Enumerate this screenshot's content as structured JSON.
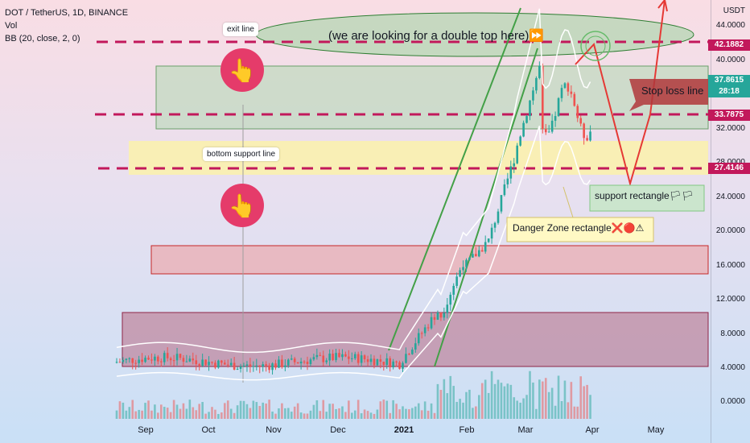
{
  "legend": {
    "symbol_line": "DOT / TetherUS, 1D, BINANCE",
    "vol": "Vol",
    "bb": "BB (20, close, 2, 0)"
  },
  "currency": "USDT",
  "y_axis_labels": [
    "44.0000",
    "40.0000",
    "32.0000",
    "28.0000",
    "24.0000",
    "20.0000",
    "16.0000",
    "12.0000",
    "8.0000",
    "4.0000",
    "0.0000"
  ],
  "x_axis_labels": [
    "Sep",
    "Oct",
    "Nov",
    "Dec",
    "2021",
    "Feb",
    "Mar",
    "Apr",
    "May"
  ],
  "price_tags": {
    "top": "42.1882",
    "current": "37.8615",
    "countdown": "28:18",
    "mid": "33.7875",
    "low": "27.4146"
  },
  "notes": {
    "exit_line": "exit line",
    "bottom_support": "bottom support line"
  },
  "callouts": {
    "double_top": "(we are looking for a double top here)⏩",
    "stop_loss": "Stop loss line",
    "support_rect": "support rectangle🏳🏳",
    "danger_zone": "Danger Zone rectangle❌🔴⚠"
  },
  "icons": [
    "hand-pointing-icon"
  ],
  "colors": {
    "dashed_line": "#c2185b",
    "bull": "#26a69a",
    "bear": "#ef5350",
    "green_zone": "#a5d6a7",
    "yellow_zone": "#fff59d",
    "red_zone": "#ef9a9a",
    "pin": "#e53b6a"
  }
}
